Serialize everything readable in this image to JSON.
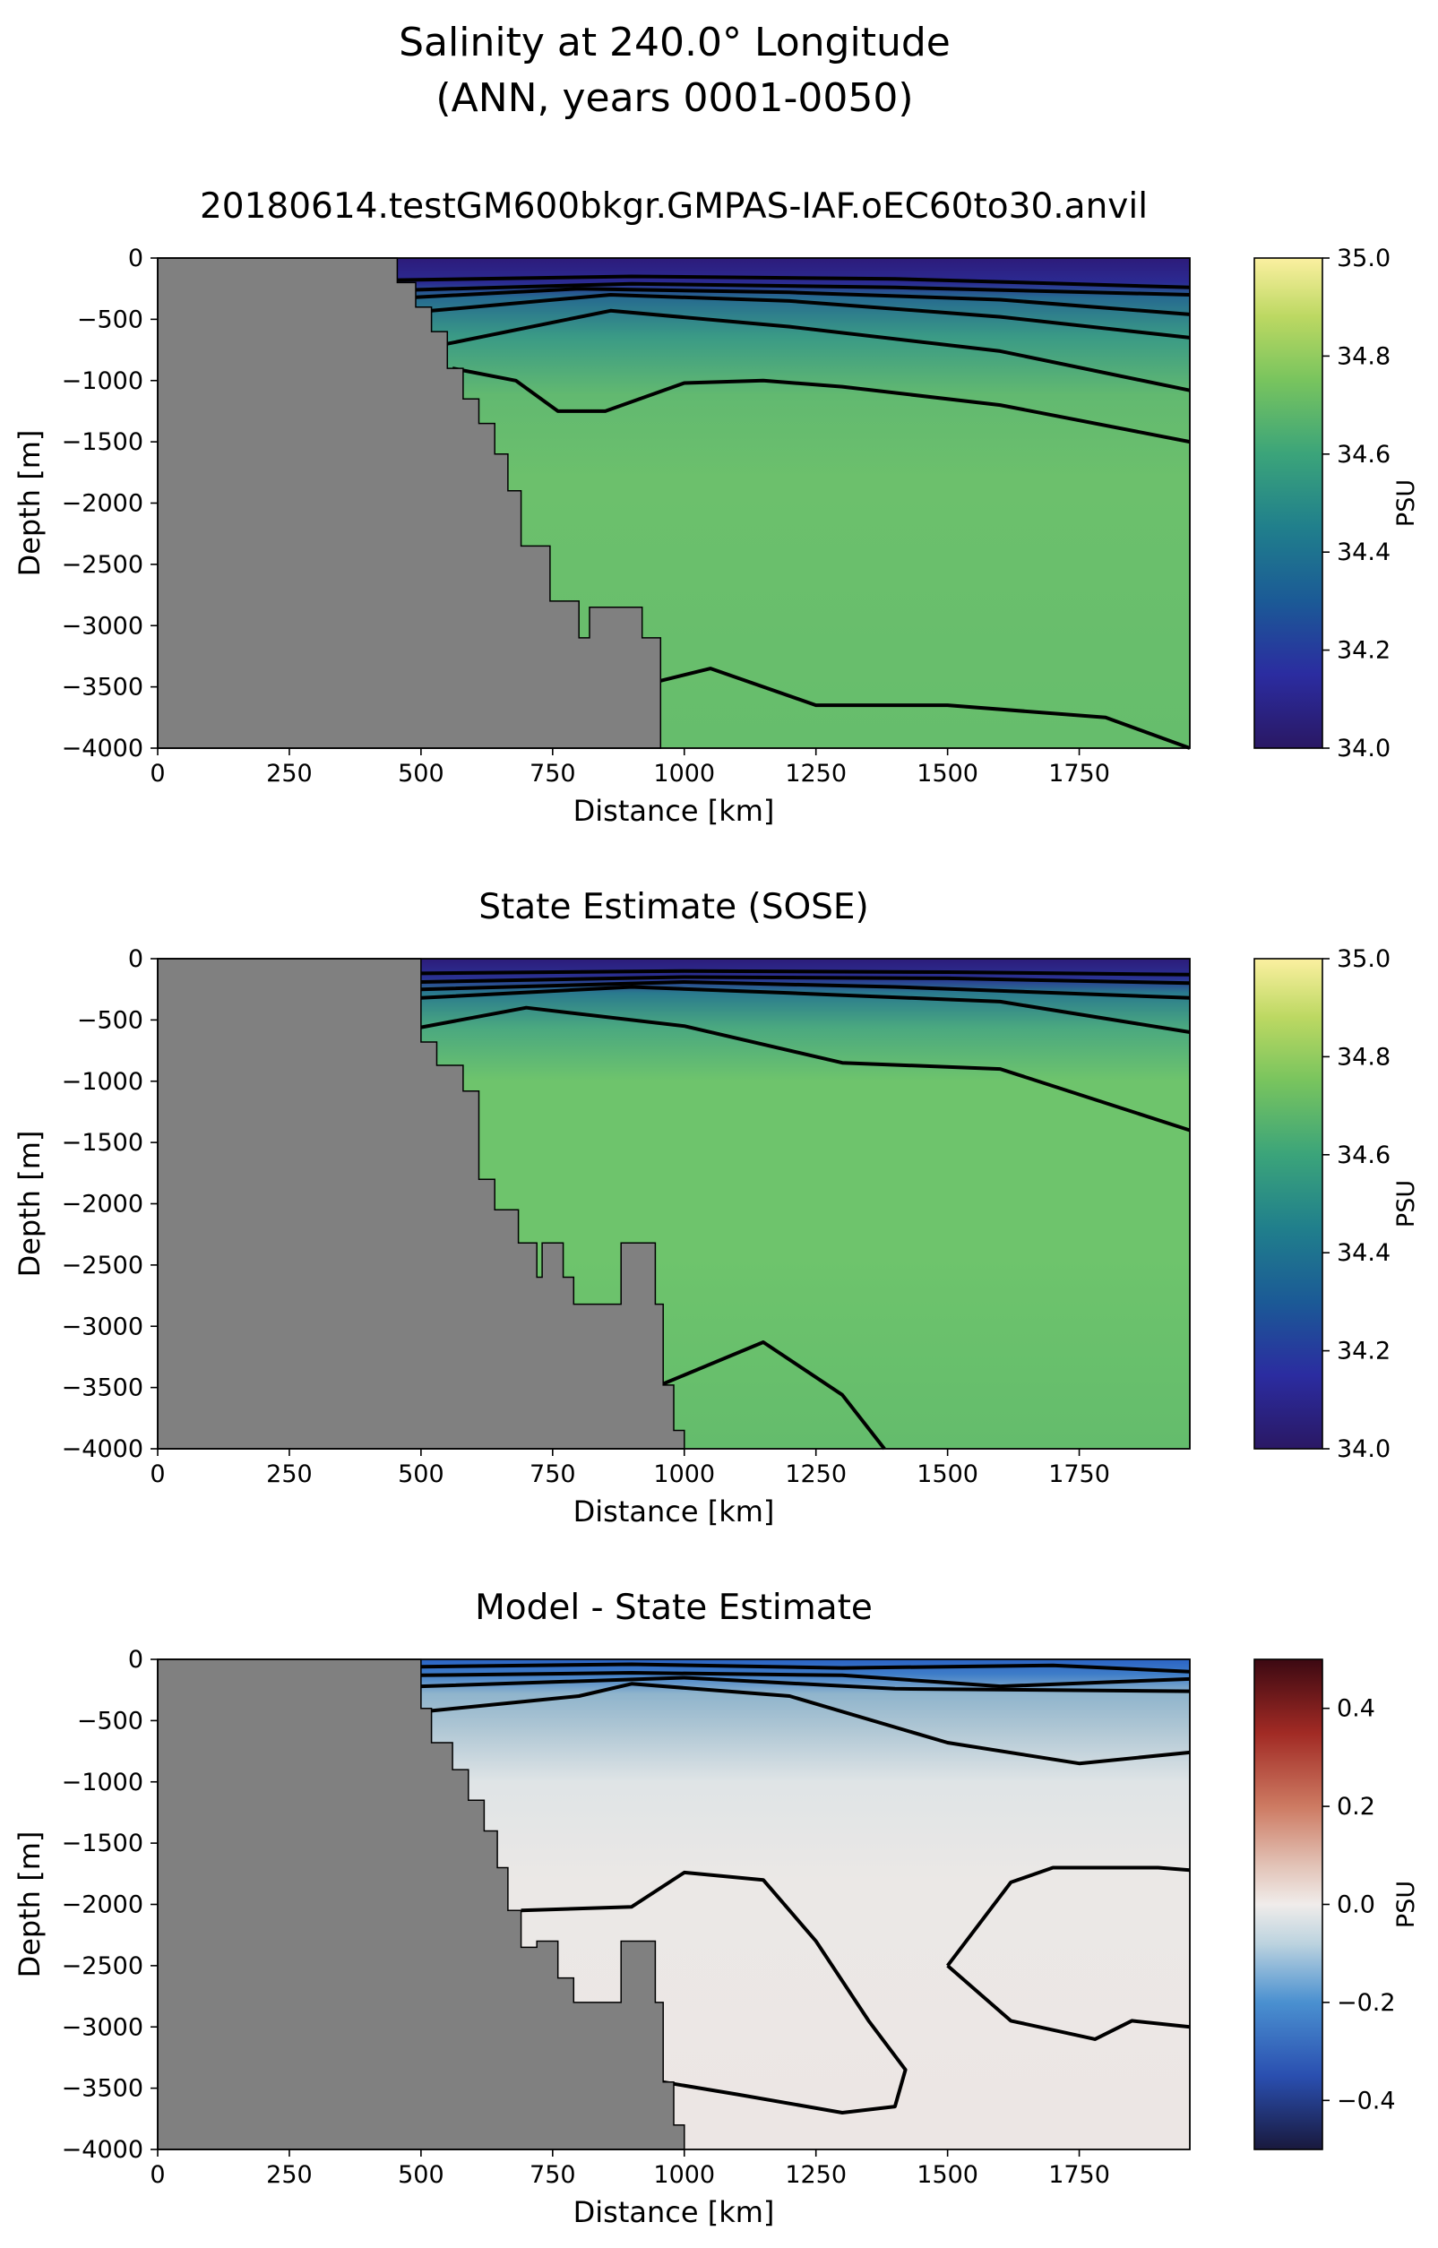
{
  "figure": {
    "title_line1": "Salinity at 240.0° Longitude",
    "title_line2": "(ANN, years 0001-0050)"
  },
  "chart_data": [
    {
      "type": "heatmap",
      "title": "20180614.testGM600bkgr.GMPAS-IAF.oEC60to30.anvil",
      "xlabel": "Distance [km]",
      "ylabel": "Depth [m]",
      "xlim": [
        0,
        1960
      ],
      "ylim": [
        -4000,
        0
      ],
      "xticks": [
        0,
        250,
        500,
        750,
        1000,
        1250,
        1500,
        1750
      ],
      "yticks": [
        0,
        -500,
        -1000,
        -1500,
        -2000,
        -2500,
        -3000,
        -3500,
        -4000
      ],
      "colorbar": {
        "label": "PSU",
        "range": [
          34.0,
          35.0
        ],
        "ticks": [
          "34.0",
          "34.2",
          "34.4",
          "34.6",
          "34.8",
          "35.0"
        ],
        "colormap": "haline"
      },
      "field_colors": {
        "deep": "#6cc06c",
        "surface": "#2d1b7a",
        "mid": "#3a8f8a"
      },
      "bathymetry": [
        [
          0,
          0
        ],
        [
          455,
          0
        ],
        [
          455,
          -200
        ],
        [
          490,
          -200
        ],
        [
          490,
          -400
        ],
        [
          520,
          -400
        ],
        [
          520,
          -600
        ],
        [
          550,
          -600
        ],
        [
          550,
          -900
        ],
        [
          580,
          -900
        ],
        [
          580,
          -1150
        ],
        [
          610,
          -1150
        ],
        [
          610,
          -1350
        ],
        [
          640,
          -1350
        ],
        [
          640,
          -1600
        ],
        [
          665,
          -1600
        ],
        [
          665,
          -1900
        ],
        [
          690,
          -1900
        ],
        [
          690,
          -2350
        ],
        [
          745,
          -2350
        ],
        [
          745,
          -2800
        ],
        [
          800,
          -2800
        ],
        [
          800,
          -3100
        ],
        [
          820,
          -3100
        ],
        [
          820,
          -2850
        ],
        [
          920,
          -2850
        ],
        [
          920,
          -3100
        ],
        [
          955,
          -3100
        ],
        [
          955,
          -4000
        ]
      ],
      "contours": [
        [
          [
            455,
            -180
          ],
          [
            900,
            -150
          ],
          [
            1400,
            -170
          ],
          [
            1960,
            -240
          ]
        ],
        [
          [
            480,
            -260
          ],
          [
            900,
            -210
          ],
          [
            1400,
            -240
          ],
          [
            1960,
            -300
          ]
        ],
        [
          [
            490,
            -320
          ],
          [
            800,
            -250
          ],
          [
            1200,
            -280
          ],
          [
            1600,
            -340
          ],
          [
            1960,
            -460
          ]
        ],
        [
          [
            520,
            -430
          ],
          [
            860,
            -300
          ],
          [
            1200,
            -350
          ],
          [
            1600,
            -480
          ],
          [
            1960,
            -650
          ]
        ],
        [
          [
            550,
            -700
          ],
          [
            860,
            -430
          ],
          [
            1200,
            -560
          ],
          [
            1600,
            -760
          ],
          [
            1960,
            -1080
          ]
        ],
        [
          [
            560,
            -900
          ],
          [
            680,
            -1000
          ],
          [
            760,
            -1250
          ],
          [
            850,
            -1250
          ],
          [
            1000,
            -1020
          ],
          [
            1150,
            -1000
          ],
          [
            1300,
            -1050
          ],
          [
            1600,
            -1200
          ],
          [
            1960,
            -1500
          ]
        ],
        [
          [
            955,
            -3450
          ],
          [
            1050,
            -3350
          ],
          [
            1250,
            -3650
          ],
          [
            1500,
            -3650
          ],
          [
            1800,
            -3750
          ],
          [
            1960,
            -4000
          ]
        ]
      ]
    },
    {
      "type": "heatmap",
      "title": "State Estimate (SOSE)",
      "xlabel": "Distance [km]",
      "ylabel": "Depth [m]",
      "xlim": [
        0,
        1960
      ],
      "ylim": [
        -4000,
        0
      ],
      "xticks": [
        0,
        250,
        500,
        750,
        1000,
        1250,
        1500,
        1750
      ],
      "yticks": [
        0,
        -500,
        -1000,
        -1500,
        -2000,
        -2500,
        -3000,
        -3500,
        -4000
      ],
      "colorbar": {
        "label": "PSU",
        "range": [
          34.0,
          35.0
        ],
        "ticks": [
          "34.0",
          "34.2",
          "34.4",
          "34.6",
          "34.8",
          "35.0"
        ],
        "colormap": "haline"
      },
      "field_colors": {
        "deep": "#6ec46c",
        "surface": "#2d1b7a",
        "mid": "#3a8f8a"
      },
      "bathymetry": [
        [
          0,
          0
        ],
        [
          500,
          0
        ],
        [
          500,
          -680
        ],
        [
          530,
          -680
        ],
        [
          530,
          -870
        ],
        [
          580,
          -870
        ],
        [
          580,
          -1080
        ],
        [
          610,
          -1080
        ],
        [
          610,
          -1800
        ],
        [
          640,
          -1800
        ],
        [
          640,
          -2050
        ],
        [
          685,
          -2050
        ],
        [
          685,
          -2320
        ],
        [
          720,
          -2320
        ],
        [
          720,
          -2600
        ],
        [
          730,
          -2600
        ],
        [
          730,
          -2320
        ],
        [
          770,
          -2320
        ],
        [
          770,
          -2600
        ],
        [
          790,
          -2600
        ],
        [
          790,
          -2820
        ],
        [
          880,
          -2820
        ],
        [
          880,
          -2320
        ],
        [
          945,
          -2320
        ],
        [
          945,
          -2820
        ],
        [
          960,
          -2820
        ],
        [
          960,
          -3480
        ],
        [
          980,
          -3480
        ],
        [
          980,
          -3850
        ],
        [
          1000,
          -3850
        ],
        [
          1000,
          -4000
        ]
      ],
      "contours": [
        [
          [
            500,
            -120
          ],
          [
            1000,
            -100
          ],
          [
            1500,
            -110
          ],
          [
            1960,
            -130
          ]
        ],
        [
          [
            500,
            -190
          ],
          [
            1000,
            -150
          ],
          [
            1500,
            -160
          ],
          [
            1960,
            -200
          ]
        ],
        [
          [
            500,
            -250
          ],
          [
            1000,
            -190
          ],
          [
            1400,
            -230
          ],
          [
            1960,
            -320
          ]
        ],
        [
          [
            500,
            -320
          ],
          [
            900,
            -230
          ],
          [
            1200,
            -280
          ],
          [
            1600,
            -350
          ],
          [
            1960,
            -600
          ]
        ],
        [
          [
            500,
            -560
          ],
          [
            700,
            -400
          ],
          [
            1000,
            -550
          ],
          [
            1300,
            -850
          ],
          [
            1600,
            -900
          ],
          [
            1960,
            -1400
          ]
        ],
        [
          [
            960,
            -3470
          ],
          [
            1150,
            -3130
          ],
          [
            1300,
            -3560
          ],
          [
            1380,
            -4000
          ]
        ]
      ]
    },
    {
      "type": "heatmap",
      "title": "Model - State Estimate",
      "xlabel": "Distance [km]",
      "ylabel": "Depth [m]",
      "xlim": [
        0,
        1960
      ],
      "ylim": [
        -4000,
        0
      ],
      "xticks": [
        0,
        250,
        500,
        750,
        1000,
        1250,
        1500,
        1750
      ],
      "yticks": [
        0,
        -500,
        -1000,
        -1500,
        -2000,
        -2500,
        -3000,
        -3500,
        -4000
      ],
      "colorbar": {
        "label": "PSU",
        "range": [
          -0.5,
          0.5
        ],
        "ticks": [
          "−0.4",
          "−0.2",
          "0.0",
          "0.2",
          "0.4"
        ],
        "colormap": "balance"
      },
      "field_colors": {
        "deep": "#ece8e6",
        "surface": "#2b63c4",
        "mid": "#94b9cf"
      },
      "bathymetry": [
        [
          0,
          0
        ],
        [
          500,
          0
        ],
        [
          500,
          -400
        ],
        [
          520,
          -400
        ],
        [
          520,
          -680
        ],
        [
          560,
          -680
        ],
        [
          560,
          -900
        ],
        [
          590,
          -900
        ],
        [
          590,
          -1150
        ],
        [
          620,
          -1150
        ],
        [
          620,
          -1400
        ],
        [
          645,
          -1400
        ],
        [
          645,
          -1700
        ],
        [
          665,
          -1700
        ],
        [
          665,
          -2050
        ],
        [
          690,
          -2050
        ],
        [
          690,
          -2350
        ],
        [
          720,
          -2350
        ],
        [
          720,
          -2300
        ],
        [
          760,
          -2300
        ],
        [
          760,
          -2600
        ],
        [
          790,
          -2600
        ],
        [
          790,
          -2800
        ],
        [
          880,
          -2800
        ],
        [
          880,
          -2300
        ],
        [
          945,
          -2300
        ],
        [
          945,
          -2800
        ],
        [
          960,
          -2800
        ],
        [
          960,
          -3450
        ],
        [
          980,
          -3450
        ],
        [
          980,
          -3800
        ],
        [
          1000,
          -3800
        ],
        [
          1000,
          -4000
        ]
      ],
      "contours": [
        [
          [
            500,
            -60
          ],
          [
            900,
            -40
          ],
          [
            1300,
            -70
          ],
          [
            1700,
            -50
          ],
          [
            1960,
            -100
          ]
        ],
        [
          [
            500,
            -130
          ],
          [
            900,
            -110
          ],
          [
            1300,
            -130
          ],
          [
            1600,
            -220
          ],
          [
            1960,
            -160
          ]
        ],
        [
          [
            500,
            -220
          ],
          [
            1000,
            -150
          ],
          [
            1400,
            -240
          ],
          [
            1960,
            -260
          ]
        ],
        [
          [
            520,
            -420
          ],
          [
            800,
            -300
          ],
          [
            900,
            -200
          ],
          [
            1200,
            -300
          ],
          [
            1500,
            -680
          ],
          [
            1750,
            -850
          ],
          [
            1960,
            -760
          ]
        ],
        [
          [
            690,
            -2050
          ],
          [
            900,
            -2020
          ],
          [
            1000,
            -1740
          ],
          [
            1150,
            -1800
          ],
          [
            1250,
            -2300
          ],
          [
            1350,
            -2950
          ],
          [
            1420,
            -3350
          ],
          [
            1400,
            -3650
          ],
          [
            1300,
            -3700
          ],
          [
            1100,
            -3550
          ],
          [
            960,
            -3450
          ]
        ],
        [
          [
            1500,
            -2500
          ],
          [
            1620,
            -1820
          ],
          [
            1700,
            -1700
          ],
          [
            1900,
            -1700
          ],
          [
            1960,
            -1720
          ]
        ],
        [
          [
            1500,
            -2500
          ],
          [
            1620,
            -2950
          ],
          [
            1780,
            -3100
          ],
          [
            1850,
            -2950
          ],
          [
            1960,
            -3000
          ]
        ]
      ]
    }
  ]
}
